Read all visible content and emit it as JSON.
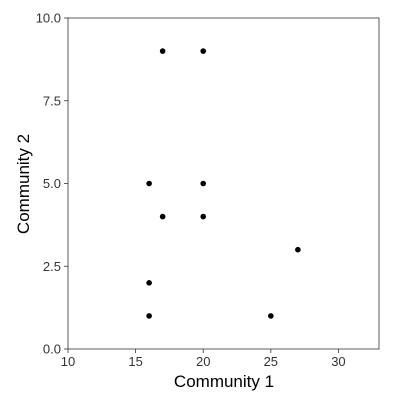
{
  "chart_data": {
    "type": "scatter",
    "title": "",
    "xlabel": "Community 1",
    "ylabel": "Community 2",
    "xlim": [
      10,
      33
    ],
    "ylim": [
      0,
      10
    ],
    "x_ticks": [
      10,
      15,
      20,
      25,
      30
    ],
    "x_tick_labels": [
      "10",
      "15",
      "20",
      "25",
      "30"
    ],
    "y_ticks": [
      0,
      2.5,
      5,
      7.5,
      10
    ],
    "y_tick_labels": [
      "0.0",
      "2.5",
      "5.0",
      "7.5",
      "10.0"
    ],
    "grid": false,
    "legend": "none",
    "point_color": "#000000",
    "points": [
      {
        "x": 17,
        "y": 9
      },
      {
        "x": 20,
        "y": 9
      },
      {
        "x": 16,
        "y": 5
      },
      {
        "x": 20,
        "y": 5
      },
      {
        "x": 17,
        "y": 4
      },
      {
        "x": 20,
        "y": 4
      },
      {
        "x": 27,
        "y": 3
      },
      {
        "x": 16,
        "y": 2
      },
      {
        "x": 16,
        "y": 1
      },
      {
        "x": 25,
        "y": 1
      }
    ]
  }
}
